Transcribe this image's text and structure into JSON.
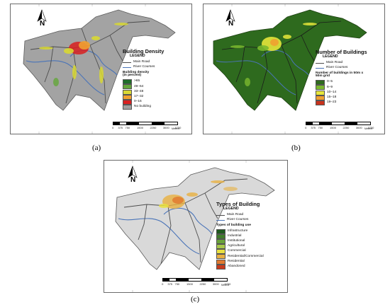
{
  "panels": [
    {
      "id": "a",
      "caption": "(a)",
      "legend": {
        "title": "Building Density",
        "subtitle": "LEGEND",
        "lines": [
          {
            "label": "Main Road",
            "color": "#4d4d4d"
          },
          {
            "label": "River Courses",
            "color": "#4a74b8"
          }
        ],
        "classes_heading": "Building  density\n(in percent)",
        "classes": [
          {
            "label": ">65",
            "color": "#1f6e2a"
          },
          {
            "label": "49–64",
            "color": "#63a63a"
          },
          {
            "label": "33–48",
            "color": "#d8d833"
          },
          {
            "label": "17–32",
            "color": "#f0a030"
          },
          {
            "label": "0–16",
            "color": "#d92020"
          },
          {
            "label": "No building",
            "color": "#a0a0a0"
          }
        ]
      },
      "scale": {
        "ticks": [
          "0",
          "375",
          "750",
          "1500",
          "2250",
          "3000",
          "3750"
        ],
        "unit": "Meters"
      }
    },
    {
      "id": "b",
      "caption": "(b)",
      "legend": {
        "title": "Number of Buildings",
        "subtitle": "LEGEND",
        "lines": [
          {
            "label": "Main Road",
            "color": "#4d4d4d"
          },
          {
            "label": "River Courses",
            "color": "#4a74b8"
          }
        ],
        "classes_heading": "Number of buildings in 50m x\n50m grid",
        "classes": [
          {
            "label": "0–5",
            "color": "#2e6a1e"
          },
          {
            "label": "6–9",
            "color": "#7ab82e"
          },
          {
            "label": "10–14",
            "color": "#e6e63a"
          },
          {
            "label": "15–18",
            "color": "#f0a030"
          },
          {
            "label": "19–23",
            "color": "#c8321c"
          }
        ]
      },
      "scale": {
        "ticks": [
          "0",
          "375",
          "750",
          "1500",
          "2250",
          "3000",
          "3750"
        ],
        "unit": "Meters"
      }
    },
    {
      "id": "c",
      "caption": "(c)",
      "legend": {
        "title": "Types of Building",
        "subtitle": "LEGEND",
        "lines": [
          {
            "label": "Main Road",
            "color": "#4d4d4d"
          },
          {
            "label": "River Courses",
            "color": "#4a74b8"
          }
        ],
        "classes_heading": "Types of building use",
        "classes": [
          {
            "label": "Infrastructure",
            "color": "#1e5a1e"
          },
          {
            "label": "Industrial",
            "color": "#3f7d2a"
          },
          {
            "label": "Institutional",
            "color": "#6aa23a"
          },
          {
            "label": "Agricultural",
            "color": "#a8c84a"
          },
          {
            "label": "Commercial",
            "color": "#e8e040"
          },
          {
            "label": "Residential/Commercial",
            "color": "#e8b040"
          },
          {
            "label": "Residential",
            "color": "#e07a30"
          },
          {
            "label": "Abandoned",
            "color": "#c83a1c"
          }
        ]
      },
      "scale": {
        "ticks": [
          "0",
          "375",
          "750",
          "1500",
          "2250",
          "3000",
          "3750"
        ],
        "unit": "Meters"
      }
    }
  ],
  "north_label": "N",
  "colors": {
    "map_fill_a": "#a3a3a3",
    "map_fill_b": "#2e6a1e",
    "map_fill_c": "#d9d9d9",
    "road": "#4d4d4d",
    "river": "#4a74b8"
  }
}
